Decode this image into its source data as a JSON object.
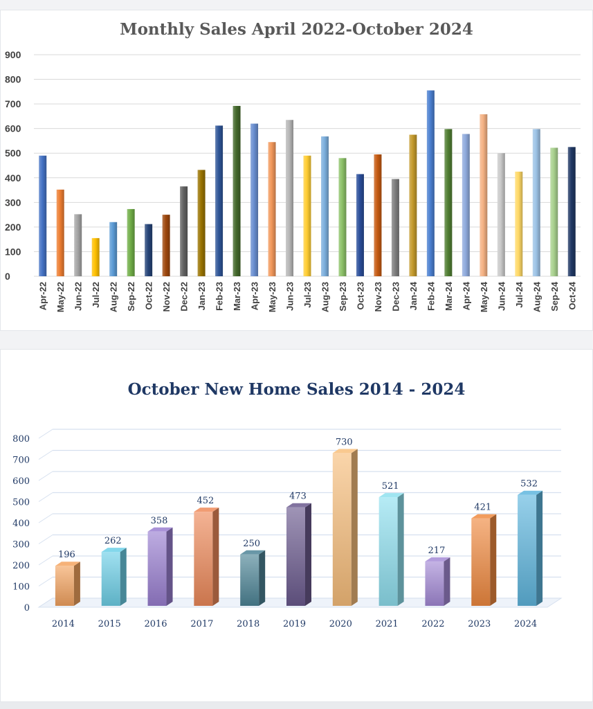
{
  "chart_data": [
    {
      "type": "bar",
      "title": "Monthly Sales April 2022-October 2024",
      "xlabel": "",
      "ylabel": "",
      "ylim": [
        0,
        900
      ],
      "yticks": [
        "0",
        "100",
        "200",
        "300",
        "400",
        "500",
        "600",
        "700",
        "800",
        "900"
      ],
      "grid": true,
      "legend": "none",
      "categories": [
        "Apr-22",
        "May-22",
        "Jun-22",
        "Jul-22",
        "Aug-22",
        "Sep-22",
        "Oct-22",
        "Nov-22",
        "Dec-22",
        "Jan-23",
        "Feb-23",
        "Mar-23",
        "Apr-23",
        "May-23",
        "Jun-23",
        "Jul-23",
        "Aug-23",
        "Sep-23",
        "Oct-23",
        "Nov-23",
        "Dec-23",
        "Jan-24",
        "Feb-24",
        "Mar-24",
        "Apr-24",
        "May-24",
        "Jun-24",
        "Jul-24",
        "Aug-24",
        "Sep-24",
        "Oct-24"
      ],
      "values": [
        490,
        352,
        252,
        155,
        220,
        273,
        212,
        250,
        365,
        432,
        612,
        692,
        620,
        545,
        635,
        490,
        568,
        480,
        415,
        495,
        395,
        575,
        755,
        598,
        578,
        658,
        500,
        425,
        598,
        522,
        525
      ],
      "colors": [
        "#4472c4",
        "#ed7d31",
        "#a5a5a5",
        "#ffc000",
        "#5b9bd5",
        "#70ad47",
        "#264478",
        "#9e480e",
        "#636363",
        "#997300",
        "#2f5597",
        "#43682b",
        "#698ed0",
        "#f1975a",
        "#b7b7b7",
        "#ffcd33",
        "#7cafdd",
        "#8cc168",
        "#2a4d99",
        "#c55a11",
        "#7f7f7f",
        "#c49a2c",
        "#4a7fd0",
        "#507e32",
        "#8faadc",
        "#f4b183",
        "#c9c9c9",
        "#ffd966",
        "#9dc3e6",
        "#a9d18e",
        "#203864"
      ]
    },
    {
      "type": "bar",
      "title": "October New Home Sales 2014 - 2024",
      "xlabel": "",
      "ylabel": "",
      "ylim": [
        0,
        800
      ],
      "yticks": [
        "0",
        "100",
        "200",
        "300",
        "400",
        "500",
        "600",
        "700",
        "800"
      ],
      "grid": true,
      "legend": "none",
      "categories": [
        "2014",
        "2015",
        "2016",
        "2017",
        "2018",
        "2019",
        "2020",
        "2021",
        "2022",
        "2023",
        "2024"
      ],
      "values": [
        196,
        262,
        358,
        452,
        250,
        473,
        730,
        521,
        217,
        421,
        532
      ],
      "data_labels": [
        "196",
        "262",
        "358",
        "452",
        "250",
        "473",
        "730",
        "521",
        "217",
        "421",
        "532"
      ],
      "colors": [
        "#f4a460",
        "#6dd0e8",
        "#9a7fd1",
        "#ee8a5a",
        "#4e8597",
        "#6b5a8e",
        "#f8bf7c",
        "#8fe0ef",
        "#a48ad6",
        "#f08a40",
        "#5fb6de"
      ]
    }
  ]
}
